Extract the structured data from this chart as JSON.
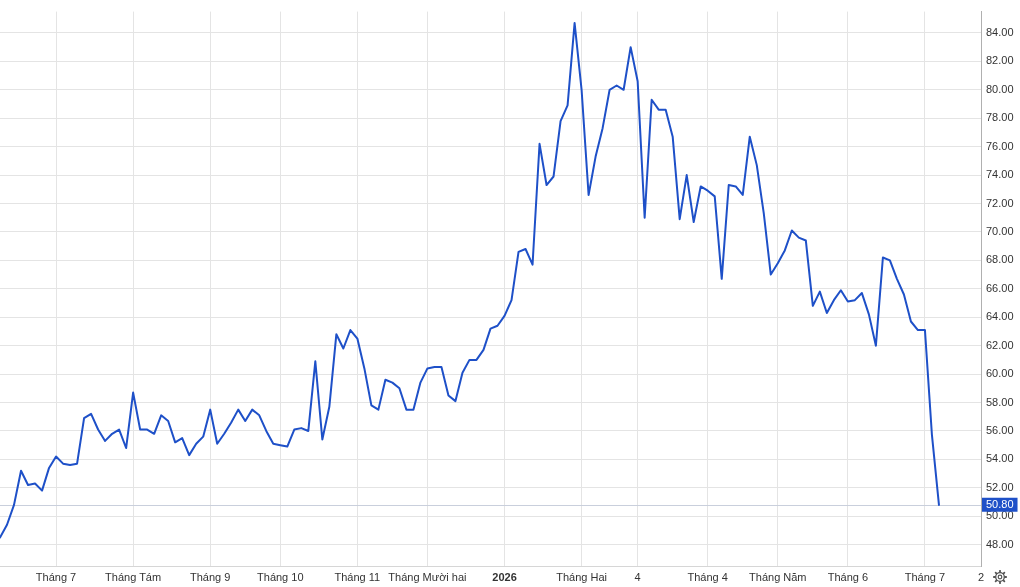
{
  "chart_data": {
    "type": "line",
    "categories": [
      null,
      null,
      null,
      null,
      null,
      null,
      null,
      null,
      "Tháng 7",
      null,
      null,
      null,
      null,
      null,
      null,
      null,
      null,
      null,
      null,
      "Tháng Tám",
      null,
      null,
      null,
      null,
      null,
      null,
      null,
      null,
      null,
      null,
      "Tháng 9",
      null,
      null,
      null,
      null,
      null,
      null,
      null,
      null,
      null,
      "Tháng 10",
      null,
      null,
      null,
      null,
      null,
      null,
      null,
      null,
      null,
      null,
      "Tháng 11",
      null,
      null,
      null,
      null,
      null,
      null,
      null,
      null,
      null,
      "Tháng Mười hai",
      null,
      null,
      null,
      null,
      null,
      null,
      null,
      null,
      null,
      null,
      "2026",
      null,
      null,
      null,
      null,
      null,
      null,
      null,
      null,
      null,
      null,
      "Tháng Hai",
      null,
      null,
      null,
      null,
      null,
      null,
      null,
      "4",
      null,
      null,
      null,
      null,
      null,
      null,
      null,
      null,
      null,
      "Tháng 4",
      null,
      null,
      null,
      null,
      null,
      null,
      null,
      null,
      null,
      "Tháng Năm",
      null,
      null,
      null,
      null,
      null,
      null,
      null,
      null,
      null,
      "Tháng 6",
      null,
      null,
      null,
      null,
      null,
      null,
      null,
      null,
      null,
      null,
      "Tháng 7",
      null,
      null,
      null,
      null,
      null,
      null,
      null,
      "2"
    ],
    "values": [
      48.5,
      49.4,
      50.8,
      53.2,
      52.2,
      52.3,
      51.8,
      53.4,
      54.2,
      53.7,
      53.6,
      53.7,
      56.9,
      57.2,
      56.1,
      55.3,
      55.8,
      56.1,
      54.8,
      58.7,
      56.1,
      56.1,
      55.8,
      57.1,
      56.7,
      55.2,
      55.5,
      54.3,
      55.1,
      55.6,
      57.5,
      55.1,
      55.8,
      56.6,
      57.5,
      56.7,
      57.5,
      57.1,
      56.0,
      55.1,
      55.0,
      54.9,
      56.1,
      56.2,
      56.0,
      60.9,
      55.4,
      57.7,
      62.8,
      61.8,
      63.1,
      62.5,
      60.4,
      57.8,
      57.5,
      59.6,
      59.4,
      59.0,
      57.5,
      57.5,
      59.4,
      60.4,
      60.5,
      60.5,
      58.5,
      58.1,
      60.1,
      61.0,
      61.0,
      61.7,
      63.2,
      63.4,
      64.1,
      65.2,
      68.6,
      68.8,
      67.7,
      76.2,
      73.3,
      73.9,
      77.8,
      78.9,
      84.7,
      80.0,
      72.6,
      75.3,
      77.3,
      80.0,
      80.3,
      80.0,
      83.0,
      80.6,
      71.0,
      79.3,
      78.6,
      78.6,
      76.7,
      70.9,
      74.0,
      70.7,
      73.2,
      72.9,
      72.5,
      66.7,
      73.3,
      73.2,
      72.6,
      76.7,
      74.7,
      71.3,
      67.0,
      67.8,
      68.7,
      70.1,
      69.6,
      69.4,
      64.8,
      65.8,
      64.3,
      65.2,
      65.9,
      65.1,
      65.2,
      65.7,
      64.2,
      62.0,
      68.2,
      68.0,
      66.7,
      65.6,
      63.7,
      63.1,
      63.1,
      55.7,
      50.8,
      null,
      null,
      null,
      null,
      null,
      null
    ],
    "color": "#1e50c8",
    "ylim": [
      46.5,
      85.5
    ],
    "yticks": [
      {
        "value": 48,
        "label": "48.00"
      },
      {
        "value": 50,
        "label": "50.00"
      },
      {
        "value": 52,
        "label": "52.00"
      },
      {
        "value": 54,
        "label": "54.00"
      },
      {
        "value": 56,
        "label": "56.00"
      },
      {
        "value": 58,
        "label": "58.00"
      },
      {
        "value": 60,
        "label": "60.00"
      },
      {
        "value": 62,
        "label": "62.00"
      },
      {
        "value": 64,
        "label": "64.00"
      },
      {
        "value": 66,
        "label": "66.00"
      },
      {
        "value": 68,
        "label": "68.00"
      },
      {
        "value": 70,
        "label": "70.00"
      },
      {
        "value": 72,
        "label": "72.00"
      },
      {
        "value": 74,
        "label": "74.00"
      },
      {
        "value": 76,
        "label": "76.00"
      },
      {
        "value": 78,
        "label": "78.00"
      },
      {
        "value": 80,
        "label": "80.00"
      },
      {
        "value": 82,
        "label": "82.00"
      },
      {
        "value": 84,
        "label": "84.00"
      }
    ],
    "grid": true,
    "ref_lines": [
      {
        "axis": "y",
        "value": 50.8,
        "label": "50.80"
      }
    ]
  }
}
